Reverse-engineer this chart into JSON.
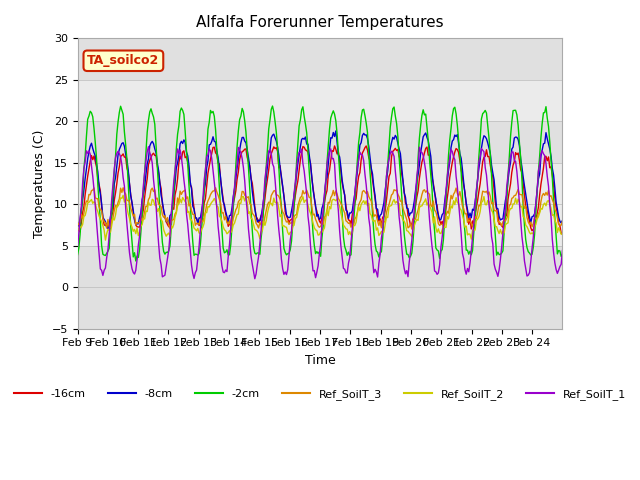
{
  "title": "Alfalfa Forerunner Temperatures",
  "ylabel": "Temperatures (C)",
  "xlabel": "Time",
  "ylim": [
    -5,
    30
  ],
  "series_names": [
    "-16cm",
    "-8cm",
    "-2cm",
    "Ref_SoilT_3",
    "Ref_SoilT_2",
    "Ref_SoilT_1"
  ],
  "series_colors": [
    "#dd0000",
    "#0000cc",
    "#00cc00",
    "#dd8800",
    "#cccc00",
    "#9900cc"
  ],
  "annotation_label": "TA_soilco2",
  "annotation_color": "#cc2200",
  "annotation_bg": "#ffffcc",
  "x_tick_labels": [
    "Feb 9",
    "Feb 10",
    "Feb 11",
    "Feb 12",
    "Feb 13",
    "Feb 14",
    "Feb 15",
    "Feb 16",
    "Feb 17",
    "Feb 18",
    "Feb 19",
    "Feb 20",
    "Feb 21",
    "Feb 22",
    "Feb 23",
    "Feb 24"
  ],
  "n_days": 16,
  "pts_per_day": 24
}
